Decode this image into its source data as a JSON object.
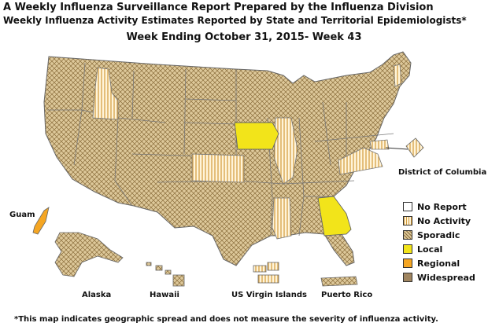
{
  "title_line1": "A Weekly Influenza Surveillance Report Prepared by the Influenza Division",
  "title_line2": "Weekly Influenza Activity Estimates Reported by State and Territorial Epidemiologists*",
  "week": "Week Ending October 31, 2015- Week 43",
  "region_labels": {
    "dc": "District of Columbia",
    "guam": "Guam",
    "alaska": "Alaska",
    "hawaii": "Hawaii",
    "usvi": "US Virgin Islands",
    "pr": "Puerto Rico"
  },
  "legend": [
    {
      "label": "No Report",
      "color": "#ffffff",
      "pattern": "none"
    },
    {
      "label": "No Activity",
      "color": "#fff4d9",
      "pattern": "vertical-lines"
    },
    {
      "label": "Sporadic",
      "color": "#ddc89a",
      "pattern": "crosshatch"
    },
    {
      "label": "Local",
      "color": "#f2e41a",
      "pattern": "solid"
    },
    {
      "label": "Regional",
      "color": "#f5a623",
      "pattern": "solid"
    },
    {
      "label": "Widespread",
      "color": "#a08560",
      "pattern": "solid"
    }
  ],
  "activity_by_state": {
    "Local": [
      "Iowa",
      "Georgia"
    ],
    "Regional": [
      "Guam"
    ],
    "No Activity": [
      "Idaho",
      "Kansas",
      "Illinois",
      "Mississippi",
      "Virginia",
      "Maryland",
      "Vermont",
      "District of Columbia",
      "US Virgin Islands"
    ],
    "Sporadic": [
      "all other states",
      "Alaska",
      "Hawaii",
      "Puerto Rico"
    ]
  },
  "footnote": "*This map indicates geographic spread and does not measure the severity of influenza activity."
}
